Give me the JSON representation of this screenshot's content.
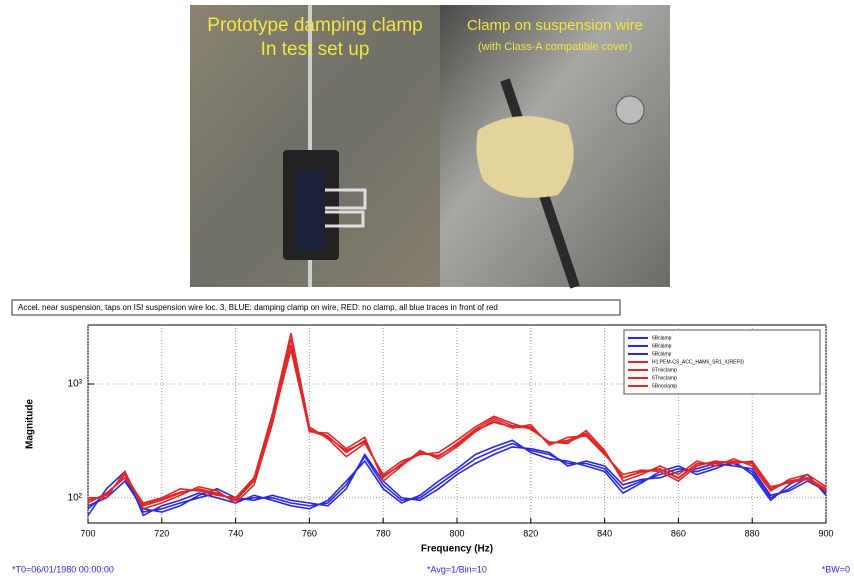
{
  "photos": {
    "left": [
      "Prototype damping clamp",
      "In test set up"
    ],
    "right": [
      "Clamp on suspension wire",
      "(with Class-A compatible cover)"
    ]
  },
  "chart_data": {
    "type": "line",
    "title": "Accel. near suspension, taps on ISI suspension wire loc. 3, BLUE: damping clamp on wire, RED: no clamp, all blue traces in front of red",
    "x_label": "Frequency (Hz)",
    "y_label": "Magnitude",
    "annotations": [
      "*T0=06/01/1980 00:00:00",
      "*Avg=1/Bin=10",
      "*BW=0"
    ],
    "log_y": true,
    "grid": true,
    "legend": "upper right",
    "xlim": [
      700,
      900
    ],
    "xticks": [
      700,
      720,
      740,
      760,
      780,
      800,
      820,
      840,
      860,
      880,
      900
    ],
    "ylim": [
      60,
      3300
    ],
    "yticks": [
      {
        "value": 100,
        "label": "10²"
      },
      {
        "value": 1000,
        "label": "10³"
      }
    ],
    "x": [
      700,
      705,
      710,
      715,
      720,
      725,
      730,
      735,
      740,
      745,
      750,
      755,
      760,
      765,
      770,
      775,
      780,
      785,
      790,
      795,
      800,
      805,
      810,
      815,
      820,
      825,
      830,
      835,
      840,
      845,
      850,
      855,
      860,
      865,
      870,
      875,
      880,
      885,
      890,
      895,
      900
    ],
    "series": [
      {
        "name": "6Bclamp",
        "color": "#2a2ae0",
        "values": [
          80,
          110,
          150,
          75,
          80,
          90,
          100,
          110,
          95,
          100,
          100,
          90,
          85,
          90,
          130,
          230,
          130,
          95,
          100,
          130,
          170,
          220,
          260,
          300,
          260,
          240,
          200,
          200,
          180,
          120,
          140,
          160,
          180,
          170,
          190,
          200,
          170,
          100,
          120,
          150,
          110
        ]
      },
      {
        "name": "6Bclamp",
        "color": "#2a2ae0",
        "values": [
          70,
          120,
          170,
          70,
          85,
          95,
          110,
          100,
          90,
          105,
          95,
          85,
          80,
          95,
          140,
          210,
          120,
          90,
          105,
          140,
          180,
          240,
          280,
          320,
          250,
          220,
          210,
          190,
          170,
          110,
          135,
          170,
          190,
          160,
          180,
          210,
          160,
          95,
          130,
          160,
          105
        ]
      },
      {
        "name": "5Bclamp",
        "color": "#2a2ae0",
        "values": [
          85,
          100,
          140,
          80,
          75,
          85,
          105,
          120,
          100,
          95,
          105,
          95,
          90,
          85,
          120,
          240,
          140,
          100,
          95,
          120,
          160,
          200,
          240,
          280,
          270,
          250,
          190,
          210,
          190,
          130,
          145,
          150,
          170,
          180,
          200,
          190,
          180,
          105,
          115,
          140,
          115
        ]
      },
      {
        "name": "H1:PEM-CS_ACC_HAM6_SR1_X(REF0)",
        "color": "#e02828",
        "values": [
          95,
          105,
          160,
          85,
          95,
          110,
          120,
          110,
          95,
          140,
          500,
          2500,
          400,
          350,
          250,
          320,
          150,
          200,
          250,
          230,
          300,
          400,
          500,
          430,
          420,
          300,
          320,
          370,
          250,
          150,
          170,
          180,
          150,
          200,
          200,
          210,
          200,
          120,
          140,
          150,
          120
        ]
      },
      {
        "name": "6Tnoclamp",
        "color": "#e02828",
        "values": [
          90,
          110,
          150,
          90,
          100,
          120,
          115,
          105,
          100,
          150,
          550,
          2800,
          420,
          330,
          230,
          300,
          160,
          210,
          240,
          250,
          320,
          420,
          520,
          450,
          400,
          310,
          300,
          390,
          260,
          140,
          160,
          190,
          160,
          210,
          190,
          220,
          190,
          115,
          145,
          160,
          125
        ]
      },
      {
        "name": "6Tnoclamp",
        "color": "#e02828",
        "values": [
          100,
          100,
          170,
          80,
          90,
          105,
          125,
          115,
          90,
          130,
          450,
          2200,
          380,
          370,
          270,
          340,
          140,
          190,
          260,
          220,
          280,
          380,
          480,
          410,
          440,
          290,
          340,
          350,
          240,
          160,
          175,
          170,
          140,
          190,
          210,
          200,
          210,
          125,
          135,
          145,
          115
        ]
      },
      {
        "name": "5Bnoclamp",
        "color": "#e02828",
        "values": [
          95,
          105,
          160,
          88,
          98,
          112,
          118,
          108,
          96,
          145,
          480,
          2000,
          390,
          340,
          260,
          310,
          155,
          195,
          245,
          235,
          290,
          390,
          460,
          420,
          410,
          305,
          310,
          360,
          245,
          150,
          168,
          178,
          148,
          198,
          205,
          208,
          205,
          118,
          138,
          148,
          118
        ]
      }
    ]
  }
}
